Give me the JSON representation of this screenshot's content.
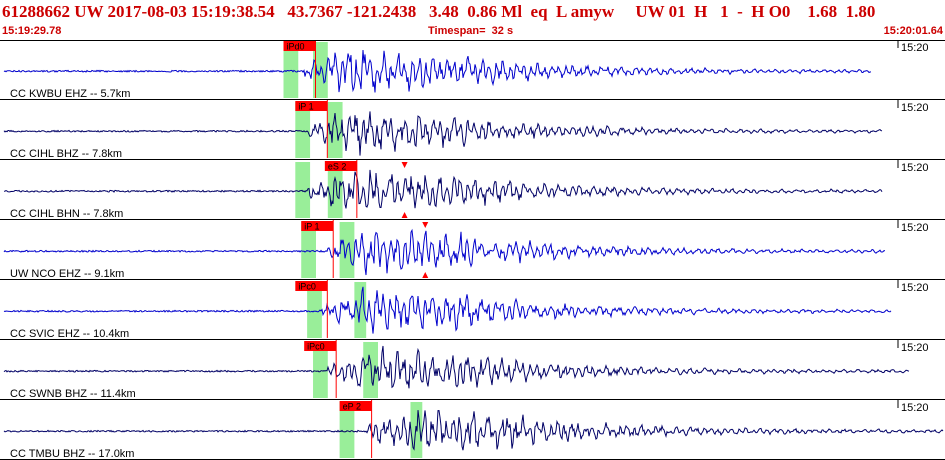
{
  "header": {
    "title": "61288662 UW 2017-08-03 15:19:38.54   43.7367 -121.2438   3.48  0.86 Ml  eq  L amyw     UW 01  H   1  -  H O0    1.68  1.80",
    "start_time": "15:19:29.78",
    "timespan": "Timespan=  32 s",
    "end_time": "15:20:01.64"
  },
  "colors": {
    "header_text": "#cc0000",
    "trace_blue": "#0000cc",
    "trace_navy": "#000066",
    "pick_fill": "#ff0000",
    "window_green": "#99ee99",
    "separator": "#000000"
  },
  "chart_data": {
    "type": "seismogram",
    "x_range": [
      0,
      32
    ],
    "x_unit": "s",
    "traces": [
      {
        "station": "CC KWBU EHZ -- 5.7km",
        "time_tick": "15:20",
        "color": "#0000cc",
        "pick_label": "iPd0",
        "pick_time": 9.6,
        "onset_time": 10.3,
        "signal_end": 29.5,
        "amplitude": 0.95,
        "green_windows": [
          [
            9.6,
            10.1
          ],
          [
            10.6,
            11.1
          ]
        ]
      },
      {
        "station": "CC CIHL BHZ -- 7.8km",
        "time_tick": "15:20",
        "color": "#000066",
        "pick_label": "iP 1",
        "pick_time": 10.0,
        "onset_time": 10.4,
        "signal_end": 29.9,
        "amplitude": 0.85,
        "green_windows": [
          [
            10.0,
            10.5
          ],
          [
            11.1,
            11.6
          ]
        ]
      },
      {
        "station": "CC CIHL BHN -- 7.8km",
        "time_tick": "15:20",
        "color": "#000066",
        "pick_label": "eS 2",
        "pick_time": 11.0,
        "onset_time": 10.4,
        "signal_end": 29.9,
        "amplitude": 0.92,
        "green_windows": [
          [
            10.0,
            10.5
          ],
          [
            11.1,
            11.6
          ]
        ],
        "markers": [
          13.7
        ]
      },
      {
        "station": "UW NCO EHZ -- 9.1km",
        "time_tick": "15:20",
        "color": "#0000cc",
        "pick_label": "iP 1",
        "pick_time": 10.2,
        "onset_time": 11.1,
        "signal_end": 30.0,
        "amplitude": 0.9,
        "green_windows": [
          [
            10.2,
            10.7
          ],
          [
            11.5,
            12.0
          ]
        ],
        "markers": [
          14.4
        ]
      },
      {
        "station": "CC SVIC EHZ -- 10.4km",
        "time_tick": "15:20",
        "color": "#0000cc",
        "pick_label": "iPc0",
        "pick_time": 10.0,
        "onset_time": 10.8,
        "signal_end": 30.2,
        "amplitude": 0.9,
        "green_windows": [
          [
            10.4,
            10.9
          ],
          [
            12.0,
            12.4
          ]
        ]
      },
      {
        "station": "CC SWNB BHZ -- 11.4km",
        "time_tick": "15:20",
        "color": "#000066",
        "pick_label": "iPc0",
        "pick_time": 10.3,
        "onset_time": 11.1,
        "signal_end": 30.8,
        "amplitude": 0.9,
        "green_windows": [
          [
            10.6,
            11.1
          ],
          [
            12.3,
            12.8
          ]
        ]
      },
      {
        "station": "CC TMBU BHZ -- 17.0km",
        "time_tick": "15:20",
        "color": "#000066",
        "pick_label": "eP 2",
        "pick_time": 11.5,
        "onset_time": 12.4,
        "signal_end": 32.0,
        "amplitude": 0.95,
        "green_windows": [
          [
            11.5,
            12.0
          ],
          [
            13.9,
            14.3
          ]
        ]
      }
    ]
  }
}
